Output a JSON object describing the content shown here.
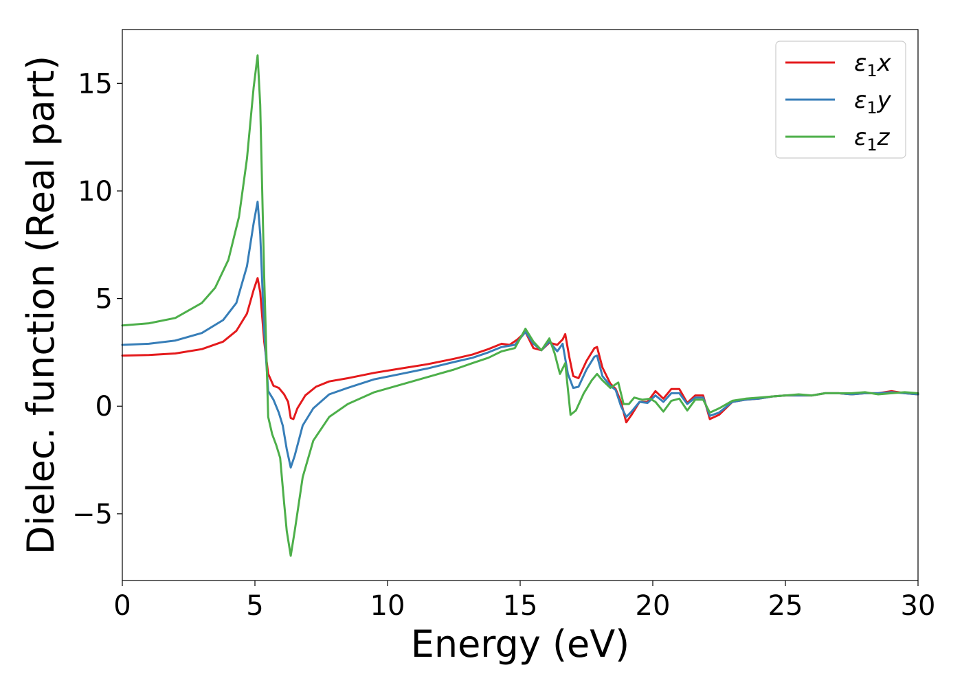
{
  "chart_data": {
    "type": "line",
    "title": "",
    "xlabel": "Energy (eV)",
    "ylabel": "Dielec. function (Real part)",
    "xlim": [
      0,
      30
    ],
    "ylim": [
      -8.1,
      17.5
    ],
    "xticks": [
      0,
      5,
      10,
      15,
      20,
      25,
      30
    ],
    "xtick_labels": [
      "0",
      "5",
      "10",
      "15",
      "20",
      "25",
      "30"
    ],
    "yticks": [
      -5,
      0,
      5,
      10,
      15
    ],
    "ytick_labels": [
      "−5",
      "0",
      "5",
      "10",
      "15"
    ],
    "grid": false,
    "legend_position": "top-right",
    "series": [
      {
        "name": "ε1x",
        "legend_base": "ε",
        "legend_sub": "1",
        "legend_var": "x",
        "color": "#e41a1c",
        "points": [
          [
            0,
            2.35
          ],
          [
            1,
            2.38
          ],
          [
            2,
            2.45
          ],
          [
            3,
            2.65
          ],
          [
            3.8,
            3.0
          ],
          [
            4.3,
            3.5
          ],
          [
            4.7,
            4.3
          ],
          [
            4.95,
            5.4
          ],
          [
            5.1,
            5.95
          ],
          [
            5.2,
            5.3
          ],
          [
            5.35,
            3.0
          ],
          [
            5.5,
            1.5
          ],
          [
            5.7,
            0.95
          ],
          [
            5.9,
            0.85
          ],
          [
            6.1,
            0.55
          ],
          [
            6.25,
            0.2
          ],
          [
            6.35,
            -0.55
          ],
          [
            6.45,
            -0.6
          ],
          [
            6.6,
            -0.1
          ],
          [
            6.9,
            0.5
          ],
          [
            7.3,
            0.9
          ],
          [
            7.8,
            1.15
          ],
          [
            8.5,
            1.3
          ],
          [
            9.5,
            1.55
          ],
          [
            10.5,
            1.75
          ],
          [
            11.5,
            1.95
          ],
          [
            12.5,
            2.2
          ],
          [
            13.2,
            2.4
          ],
          [
            13.8,
            2.65
          ],
          [
            14.3,
            2.9
          ],
          [
            14.6,
            2.85
          ],
          [
            14.9,
            3.1
          ],
          [
            15.2,
            3.45
          ],
          [
            15.5,
            2.7
          ],
          [
            15.8,
            2.6
          ],
          [
            16.1,
            2.95
          ],
          [
            16.4,
            2.85
          ],
          [
            16.6,
            3.1
          ],
          [
            16.7,
            3.35
          ],
          [
            16.85,
            2.3
          ],
          [
            17.0,
            1.4
          ],
          [
            17.2,
            1.3
          ],
          [
            17.5,
            2.1
          ],
          [
            17.8,
            2.7
          ],
          [
            17.9,
            2.75
          ],
          [
            18.1,
            1.8
          ],
          [
            18.4,
            1.05
          ],
          [
            18.6,
            0.8
          ],
          [
            18.8,
            0.2
          ],
          [
            19.0,
            -0.75
          ],
          [
            19.2,
            -0.4
          ],
          [
            19.5,
            0.2
          ],
          [
            19.8,
            0.2
          ],
          [
            20.1,
            0.7
          ],
          [
            20.4,
            0.35
          ],
          [
            20.7,
            0.8
          ],
          [
            21.0,
            0.8
          ],
          [
            21.3,
            0.15
          ],
          [
            21.6,
            0.5
          ],
          [
            21.9,
            0.5
          ],
          [
            22.15,
            -0.6
          ],
          [
            22.5,
            -0.4
          ],
          [
            23.0,
            0.2
          ],
          [
            23.5,
            0.3
          ],
          [
            24.0,
            0.35
          ],
          [
            24.5,
            0.45
          ],
          [
            25.0,
            0.5
          ],
          [
            25.5,
            0.5
          ],
          [
            26.0,
            0.5
          ],
          [
            26.5,
            0.6
          ],
          [
            27.0,
            0.6
          ],
          [
            27.5,
            0.55
          ],
          [
            28.0,
            0.6
          ],
          [
            28.5,
            0.6
          ],
          [
            29.0,
            0.7
          ],
          [
            29.5,
            0.6
          ],
          [
            30.0,
            0.55
          ]
        ]
      },
      {
        "name": "ε1y",
        "legend_base": "ε",
        "legend_sub": "1",
        "legend_var": "y",
        "color": "#377eb8",
        "points": [
          [
            0,
            2.85
          ],
          [
            1,
            2.9
          ],
          [
            2,
            3.05
          ],
          [
            3,
            3.4
          ],
          [
            3.8,
            4.0
          ],
          [
            4.3,
            4.8
          ],
          [
            4.7,
            6.5
          ],
          [
            4.95,
            8.5
          ],
          [
            5.1,
            9.5
          ],
          [
            5.2,
            8.0
          ],
          [
            5.35,
            3.5
          ],
          [
            5.5,
            0.7
          ],
          [
            5.7,
            0.3
          ],
          [
            5.9,
            -0.3
          ],
          [
            6.05,
            -0.9
          ],
          [
            6.2,
            -2.0
          ],
          [
            6.35,
            -2.85
          ],
          [
            6.5,
            -2.3
          ],
          [
            6.8,
            -0.9
          ],
          [
            7.2,
            -0.1
          ],
          [
            7.8,
            0.55
          ],
          [
            8.5,
            0.85
          ],
          [
            9.5,
            1.25
          ],
          [
            10.5,
            1.5
          ],
          [
            11.5,
            1.75
          ],
          [
            12.5,
            2.05
          ],
          [
            13.2,
            2.25
          ],
          [
            13.8,
            2.5
          ],
          [
            14.3,
            2.75
          ],
          [
            14.8,
            2.85
          ],
          [
            15.2,
            3.45
          ],
          [
            15.5,
            2.9
          ],
          [
            15.8,
            2.6
          ],
          [
            16.1,
            3.0
          ],
          [
            16.4,
            2.55
          ],
          [
            16.6,
            2.9
          ],
          [
            16.8,
            1.5
          ],
          [
            17.0,
            0.85
          ],
          [
            17.2,
            0.9
          ],
          [
            17.5,
            1.7
          ],
          [
            17.8,
            2.3
          ],
          [
            17.9,
            2.35
          ],
          [
            18.1,
            1.4
          ],
          [
            18.4,
            0.95
          ],
          [
            18.6,
            0.75
          ],
          [
            18.8,
            0.0
          ],
          [
            19.0,
            -0.5
          ],
          [
            19.2,
            -0.25
          ],
          [
            19.5,
            0.2
          ],
          [
            19.8,
            0.15
          ],
          [
            20.1,
            0.5
          ],
          [
            20.4,
            0.2
          ],
          [
            20.7,
            0.6
          ],
          [
            21.0,
            0.6
          ],
          [
            21.3,
            0.1
          ],
          [
            21.6,
            0.4
          ],
          [
            21.9,
            0.4
          ],
          [
            22.15,
            -0.45
          ],
          [
            22.5,
            -0.3
          ],
          [
            23.0,
            0.2
          ],
          [
            23.5,
            0.3
          ],
          [
            24.0,
            0.35
          ],
          [
            24.5,
            0.45
          ],
          [
            25.0,
            0.5
          ],
          [
            25.5,
            0.5
          ],
          [
            26.0,
            0.5
          ],
          [
            26.5,
            0.6
          ],
          [
            27.0,
            0.6
          ],
          [
            27.5,
            0.55
          ],
          [
            28.0,
            0.6
          ],
          [
            28.5,
            0.6
          ],
          [
            29.0,
            0.65
          ],
          [
            29.5,
            0.6
          ],
          [
            30.0,
            0.55
          ]
        ]
      },
      {
        "name": "ε1z",
        "legend_base": "ε",
        "legend_sub": "1",
        "legend_var": "z",
        "color": "#4daf4a",
        "points": [
          [
            0,
            3.75
          ],
          [
            1,
            3.85
          ],
          [
            2,
            4.1
          ],
          [
            3,
            4.8
          ],
          [
            3.5,
            5.5
          ],
          [
            4.0,
            6.8
          ],
          [
            4.4,
            8.8
          ],
          [
            4.7,
            11.5
          ],
          [
            4.95,
            14.8
          ],
          [
            5.1,
            16.3
          ],
          [
            5.2,
            14.0
          ],
          [
            5.35,
            6.0
          ],
          [
            5.5,
            -0.5
          ],
          [
            5.65,
            -1.3
          ],
          [
            5.8,
            -1.8
          ],
          [
            5.95,
            -2.4
          ],
          [
            6.1,
            -4.5
          ],
          [
            6.2,
            -5.8
          ],
          [
            6.35,
            -6.95
          ],
          [
            6.5,
            -5.8
          ],
          [
            6.8,
            -3.3
          ],
          [
            7.2,
            -1.6
          ],
          [
            7.8,
            -0.5
          ],
          [
            8.5,
            0.1
          ],
          [
            9.5,
            0.65
          ],
          [
            10.5,
            1.0
          ],
          [
            11.5,
            1.35
          ],
          [
            12.5,
            1.7
          ],
          [
            13.2,
            2.0
          ],
          [
            13.8,
            2.25
          ],
          [
            14.3,
            2.55
          ],
          [
            14.8,
            2.7
          ],
          [
            15.2,
            3.6
          ],
          [
            15.5,
            3.0
          ],
          [
            15.8,
            2.6
          ],
          [
            16.1,
            3.15
          ],
          [
            16.3,
            2.45
          ],
          [
            16.5,
            1.5
          ],
          [
            16.7,
            2.0
          ],
          [
            16.9,
            -0.4
          ],
          [
            17.1,
            -0.2
          ],
          [
            17.4,
            0.6
          ],
          [
            17.7,
            1.2
          ],
          [
            17.9,
            1.5
          ],
          [
            18.1,
            1.2
          ],
          [
            18.4,
            0.85
          ],
          [
            18.7,
            1.1
          ],
          [
            18.9,
            0.1
          ],
          [
            19.1,
            0.1
          ],
          [
            19.3,
            0.4
          ],
          [
            19.6,
            0.3
          ],
          [
            19.9,
            0.35
          ],
          [
            20.1,
            0.2
          ],
          [
            20.4,
            -0.25
          ],
          [
            20.7,
            0.25
          ],
          [
            21.0,
            0.35
          ],
          [
            21.3,
            -0.2
          ],
          [
            21.6,
            0.3
          ],
          [
            21.9,
            0.3
          ],
          [
            22.15,
            -0.3
          ],
          [
            22.5,
            -0.1
          ],
          [
            23.0,
            0.25
          ],
          [
            23.5,
            0.35
          ],
          [
            24.0,
            0.4
          ],
          [
            24.5,
            0.45
          ],
          [
            25.0,
            0.5
          ],
          [
            25.5,
            0.55
          ],
          [
            26.0,
            0.5
          ],
          [
            26.5,
            0.6
          ],
          [
            27.0,
            0.6
          ],
          [
            27.5,
            0.6
          ],
          [
            28.0,
            0.65
          ],
          [
            28.5,
            0.55
          ],
          [
            29.0,
            0.6
          ],
          [
            29.5,
            0.65
          ],
          [
            30.0,
            0.6
          ]
        ]
      }
    ]
  }
}
